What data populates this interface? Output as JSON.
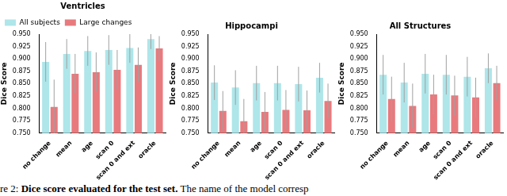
{
  "chart_data": [
    {
      "type": "bar",
      "title": "Ventricles",
      "y_label": "Dice Score",
      "categories": [
        "no change",
        "mean",
        "age",
        "scan 0",
        "scan 0 and ext",
        "oracle"
      ],
      "series": [
        {
          "name": "All subjects",
          "color": "#aee6ea",
          "values": [
            0.894,
            0.91,
            0.916,
            0.918,
            0.922,
            0.94
          ],
          "errors": [
            0.04,
            0.03,
            0.03,
            0.03,
            0.03,
            0.02
          ]
        },
        {
          "name": "Large changes",
          "color": "#e87a7e",
          "values": [
            0.803,
            0.87,
            0.873,
            0.878,
            0.888,
            0.921
          ],
          "errors": [
            0.055,
            0.04,
            0.04,
            0.04,
            0.035,
            0.025
          ]
        }
      ],
      "ylim": [
        0.75,
        0.95
      ],
      "yticks": [
        {
          "value": 0.75,
          "label": "0.750"
        },
        {
          "value": 0.775,
          "label": "0.775"
        },
        {
          "value": 0.8,
          "label": "0.800"
        },
        {
          "value": 0.825,
          "label": "0.825"
        },
        {
          "value": 0.85,
          "label": "0.850"
        },
        {
          "value": 0.875,
          "label": "0.875"
        },
        {
          "value": 0.9,
          "label": "0.900"
        },
        {
          "value": 0.925,
          "label": "0.925"
        },
        {
          "value": 0.95,
          "label": "0.950"
        }
      ],
      "grid": false,
      "legend": "top"
    },
    {
      "type": "bar",
      "title": "Hippocampi",
      "y_label": "Dice Score",
      "categories": [
        "no change",
        "mean",
        "age",
        "scan 0",
        "scan 0 and ext",
        "oracle"
      ],
      "series": [
        {
          "name": "All subjects",
          "color": "#aee6ea",
          "values": [
            0.852,
            0.842,
            0.851,
            0.851,
            0.849,
            0.862
          ],
          "errors": [
            0.035,
            0.035,
            0.035,
            0.035,
            0.035,
            0.03
          ]
        },
        {
          "name": "Large changes",
          "color": "#e87a7e",
          "values": [
            0.795,
            0.774,
            0.793,
            0.797,
            0.796,
            0.815
          ],
          "errors": [
            0.04,
            0.045,
            0.04,
            0.04,
            0.04,
            0.035
          ]
        }
      ],
      "ylim": [
        0.75,
        0.95
      ],
      "yticks": [
        {
          "value": 0.75,
          "label": "0.750"
        },
        {
          "value": 0.775,
          "label": "0.775"
        },
        {
          "value": 0.8,
          "label": "0.800"
        },
        {
          "value": 0.825,
          "label": "0.825"
        },
        {
          "value": 0.85,
          "label": "0.850"
        },
        {
          "value": 0.875,
          "label": "0.875"
        },
        {
          "value": 0.9,
          "label": "0.900"
        },
        {
          "value": 0.925,
          "label": "0.925"
        },
        {
          "value": 0.95,
          "label": "0.950"
        }
      ],
      "grid": false
    },
    {
      "type": "bar",
      "title": "All Structures",
      "y_label": "Dice Score",
      "categories": [
        "no change",
        "mean",
        "age",
        "scan 0",
        "scan 0 and ext",
        "oracle"
      ],
      "series": [
        {
          "name": "All subjects",
          "color": "#aee6ea",
          "values": [
            0.868,
            0.852,
            0.87,
            0.868,
            0.864,
            0.881
          ],
          "errors": [
            0.04,
            0.04,
            0.04,
            0.04,
            0.04,
            0.03
          ]
        },
        {
          "name": "Large changes",
          "color": "#e87a7e",
          "values": [
            0.819,
            0.805,
            0.828,
            0.826,
            0.822,
            0.851
          ],
          "errors": [
            0.045,
            0.045,
            0.04,
            0.04,
            0.04,
            0.035
          ]
        }
      ],
      "ylim": [
        0.75,
        0.95
      ],
      "yticks": [
        {
          "value": 0.75,
          "label": "0.750"
        },
        {
          "value": 0.775,
          "label": "0.775"
        },
        {
          "value": 0.8,
          "label": "0.800"
        },
        {
          "value": 0.825,
          "label": "0.825"
        },
        {
          "value": 0.85,
          "label": "0.850"
        },
        {
          "value": 0.875,
          "label": "0.875"
        },
        {
          "value": 0.9,
          "label": "0.900"
        },
        {
          "value": 0.925,
          "label": "0.925"
        },
        {
          "value": 0.95,
          "label": "0.950"
        }
      ],
      "grid": false
    }
  ],
  "caption": {
    "label": "re 2:",
    "bold": "Dice score evaluated for the test set.",
    "text": "The name of the model corresp"
  }
}
